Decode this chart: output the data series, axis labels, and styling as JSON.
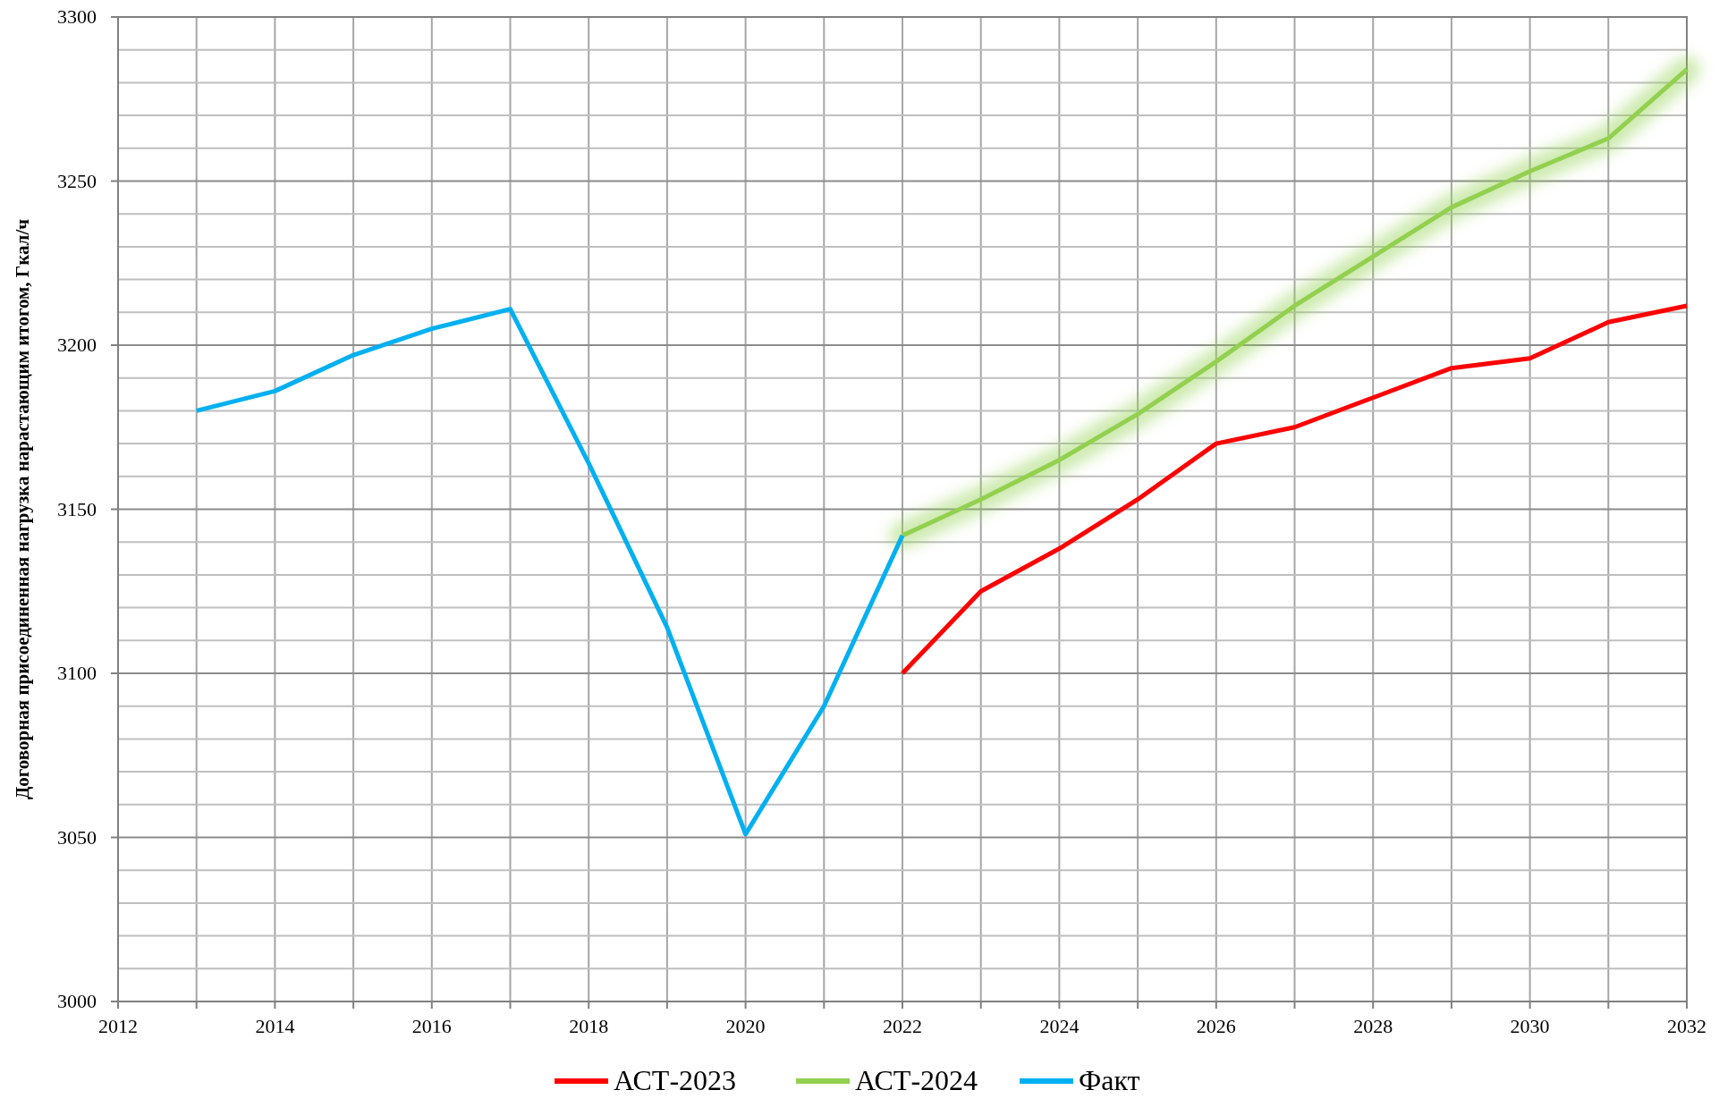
{
  "chart_data": {
    "type": "line",
    "ylabel": "Договорная присоединенная нагрузка нарастающим итогом, Гкал/ч",
    "x": [
      2013,
      2014,
      2015,
      2016,
      2017,
      2018,
      2019,
      2020,
      2021,
      2022,
      2023,
      2024,
      2025,
      2026,
      2027,
      2028,
      2029,
      2030,
      2031,
      2032
    ],
    "series": [
      {
        "name": "АСТ-2023",
        "color": "#ff0000",
        "values": [
          null,
          null,
          null,
          null,
          null,
          null,
          null,
          null,
          null,
          3100,
          3125,
          3138,
          3153,
          3170,
          3175,
          3184,
          3193,
          3196,
          3207,
          3212
        ]
      },
      {
        "name": "АСТ-2024",
        "color": "#92d050",
        "values": [
          null,
          null,
          null,
          null,
          null,
          null,
          null,
          null,
          null,
          3142,
          3153,
          3165,
          3179,
          3195,
          3212,
          3227,
          3242,
          3253,
          3263,
          3284
        ]
      },
      {
        "name": "Факт",
        "color": "#00b0f0",
        "values": [
          3180,
          3186,
          3197,
          3205,
          3211,
          3164,
          3114,
          3051,
          3090,
          3142,
          null,
          null,
          null,
          null,
          null,
          null,
          null,
          null,
          null,
          null
        ]
      }
    ],
    "xlim": [
      2012,
      2032
    ],
    "xticks": [
      2012,
      {
        "value": 2013,
        "label": null
      },
      2014,
      {
        "value": 2015,
        "label": null
      },
      2016,
      {
        "value": 2017,
        "label": null
      },
      2018,
      {
        "value": 2019,
        "label": null
      },
      2020,
      {
        "value": 2021,
        "label": null
      },
      2022,
      {
        "value": 2023,
        "label": null
      },
      2024,
      {
        "value": 2025,
        "label": null
      },
      2026,
      {
        "value": 2027,
        "label": null
      },
      2028,
      {
        "value": 2029,
        "label": null
      },
      2030,
      {
        "value": 2031,
        "label": null
      },
      2032
    ],
    "ylim": [
      3000,
      3300
    ],
    "yticks": [
      3000,
      {
        "value": 3010,
        "label": null
      },
      {
        "value": 3020,
        "label": null
      },
      {
        "value": 3030,
        "label": null
      },
      {
        "value": 3040,
        "label": null
      },
      3050,
      {
        "value": 3060,
        "label": null
      },
      {
        "value": 3070,
        "label": null
      },
      {
        "value": 3080,
        "label": null
      },
      {
        "value": 3090,
        "label": null
      },
      3100,
      {
        "value": 3110,
        "label": null
      },
      {
        "value": 3120,
        "label": null
      },
      {
        "value": 3130,
        "label": null
      },
      {
        "value": 3140,
        "label": null
      },
      3150,
      {
        "value": 3160,
        "label": null
      },
      {
        "value": 3170,
        "label": null
      },
      {
        "value": 3180,
        "label": null
      },
      {
        "value": 3190,
        "label": null
      },
      3200,
      {
        "value": 3210,
        "label": null
      },
      {
        "value": 3220,
        "label": null
      },
      {
        "value": 3230,
        "label": null
      },
      {
        "value": 3240,
        "label": null
      },
      3250,
      {
        "value": 3260,
        "label": null
      },
      {
        "value": 3270,
        "label": null
      },
      {
        "value": 3280,
        "label": null
      },
      {
        "value": 3290,
        "label": null
      },
      3300
    ],
    "grid": true,
    "legend": "bottom",
    "marker": "none",
    "line_style": "solid"
  }
}
